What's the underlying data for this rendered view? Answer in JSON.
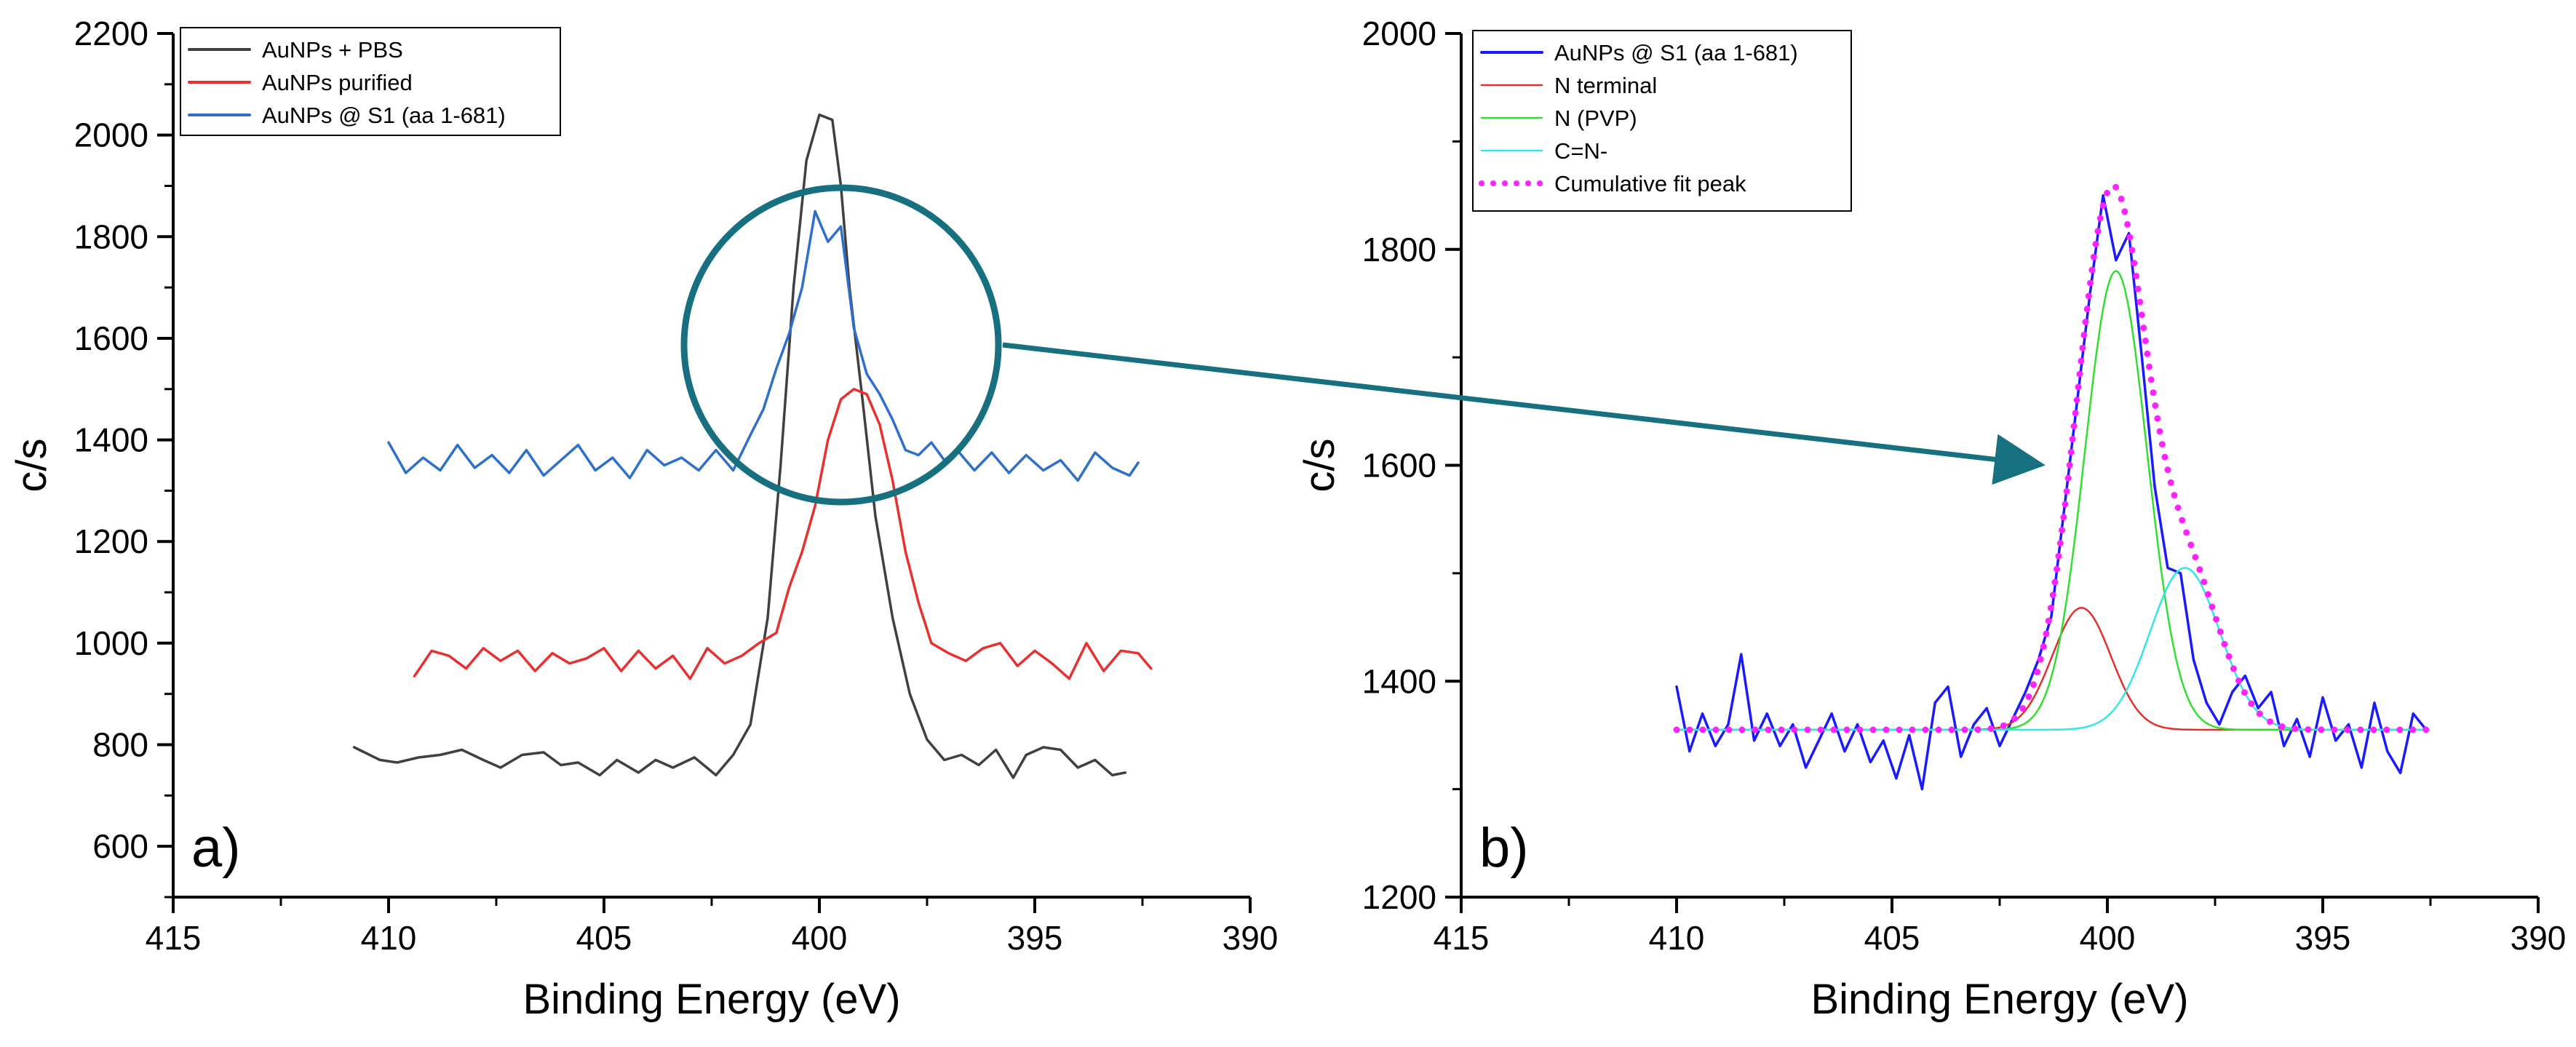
{
  "chart_data": [
    {
      "panel": "a)",
      "type": "line",
      "xlabel": "Binding Energy (eV)",
      "ylabel": "c/s",
      "xlim": [
        415,
        390
      ],
      "ylim": [
        500,
        2200
      ],
      "xticks": [
        "415",
        "410",
        "405",
        "400",
        "395",
        "390"
      ],
      "yticks": [
        "600",
        "800",
        "1000",
        "1200",
        "1400",
        "1600",
        "1800",
        "2000",
        "2200"
      ],
      "legend_position": "top-left",
      "series": [
        {
          "name": "AuNPs + PBS",
          "color": "#404040",
          "x": [
            410.8,
            410.2,
            409.8,
            409.3,
            408.8,
            408.3,
            407.8,
            407.4,
            406.9,
            406.4,
            406.0,
            405.6,
            405.1,
            404.7,
            404.2,
            403.8,
            403.4,
            402.9,
            402.4,
            402.0,
            401.6,
            401.2,
            400.9,
            400.6,
            400.3,
            400.0,
            399.7,
            399.5,
            399.3,
            399.0,
            398.7,
            398.3,
            397.9,
            397.5,
            397.1,
            396.7,
            396.3,
            395.9,
            395.5,
            395.2,
            394.8,
            394.4,
            394.0,
            393.6,
            393.2,
            392.9
          ],
          "values": [
            795,
            770,
            765,
            775,
            780,
            790,
            770,
            755,
            780,
            785,
            760,
            765,
            740,
            770,
            745,
            770,
            755,
            775,
            740,
            780,
            840,
            1050,
            1350,
            1700,
            1950,
            2040,
            2030,
            1900,
            1700,
            1480,
            1250,
            1050,
            900,
            810,
            770,
            780,
            760,
            790,
            735,
            780,
            795,
            790,
            755,
            770,
            740,
            745
          ]
        },
        {
          "name": "AuNPs purified",
          "color": "#e83030",
          "x": [
            409.4,
            409.0,
            408.6,
            408.2,
            407.8,
            407.4,
            407.0,
            406.6,
            406.2,
            405.8,
            405.4,
            405.0,
            404.6,
            404.2,
            403.8,
            403.4,
            403.0,
            402.6,
            402.2,
            401.8,
            401.4,
            401.0,
            400.7,
            400.4,
            400.1,
            399.8,
            399.5,
            399.2,
            398.9,
            398.6,
            398.3,
            398.0,
            397.7,
            397.4,
            397.0,
            396.6,
            396.2,
            395.8,
            395.4,
            395.0,
            394.6,
            394.2,
            393.8,
            393.4,
            393.0,
            392.6,
            392.3
          ],
          "values": [
            935,
            985,
            975,
            950,
            990,
            965,
            985,
            945,
            980,
            960,
            970,
            990,
            945,
            985,
            950,
            975,
            930,
            990,
            960,
            975,
            1000,
            1020,
            1110,
            1180,
            1270,
            1400,
            1480,
            1500,
            1490,
            1430,
            1320,
            1180,
            1080,
            1000,
            980,
            965,
            990,
            1000,
            955,
            985,
            960,
            930,
            1000,
            945,
            985,
            980,
            950
          ]
        },
        {
          "name": "AuNPs @ S1 (aa 1-681)",
          "color": "#2e6fcb",
          "x": [
            410.0,
            409.6,
            409.2,
            408.8,
            408.4,
            408.0,
            407.6,
            407.2,
            406.8,
            406.4,
            406.0,
            405.6,
            405.2,
            404.8,
            404.4,
            404.0,
            403.6,
            403.2,
            402.8,
            402.4,
            402.0,
            401.6,
            401.3,
            401.0,
            400.7,
            400.4,
            400.1,
            399.8,
            399.5,
            399.2,
            398.9,
            398.6,
            398.3,
            398.0,
            397.7,
            397.4,
            397.1,
            396.8,
            396.4,
            396.0,
            395.6,
            395.2,
            394.8,
            394.4,
            394.0,
            393.6,
            393.2,
            392.8,
            392.6
          ],
          "values": [
            1395,
            1335,
            1365,
            1340,
            1390,
            1345,
            1370,
            1335,
            1380,
            1330,
            1360,
            1390,
            1340,
            1365,
            1325,
            1380,
            1350,
            1365,
            1340,
            1380,
            1340,
            1410,
            1460,
            1540,
            1610,
            1700,
            1850,
            1790,
            1820,
            1620,
            1530,
            1490,
            1440,
            1380,
            1370,
            1395,
            1360,
            1380,
            1340,
            1375,
            1335,
            1370,
            1340,
            1360,
            1320,
            1375,
            1345,
            1330,
            1355
          ]
        }
      ]
    },
    {
      "panel": "b)",
      "type": "line",
      "xlabel": "Binding Energy (eV)",
      "ylabel": "c/s",
      "xlim": [
        415,
        390
      ],
      "ylim": [
        1200,
        2000
      ],
      "xticks": [
        "415",
        "410",
        "405",
        "400",
        "395",
        "390"
      ],
      "yticks": [
        "1200",
        "1400",
        "1600",
        "1800",
        "2000"
      ],
      "legend_position": "top-left",
      "series": [
        {
          "name": "AuNPs @ S1 (aa 1-681)",
          "color": "#1a1aff",
          "x": [
            410.0,
            409.7,
            409.4,
            409.1,
            408.8,
            408.5,
            408.2,
            407.9,
            407.6,
            407.3,
            407.0,
            406.7,
            406.4,
            406.1,
            405.8,
            405.5,
            405.2,
            404.9,
            404.6,
            404.3,
            404.0,
            403.7,
            403.4,
            403.1,
            402.8,
            402.5,
            402.2,
            401.9,
            401.6,
            401.3,
            401.0,
            400.7,
            400.4,
            400.1,
            399.8,
            399.5,
            399.2,
            398.9,
            398.6,
            398.3,
            398.0,
            397.7,
            397.4,
            397.1,
            396.8,
            396.5,
            396.2,
            395.9,
            395.6,
            395.3,
            395.0,
            394.7,
            394.4,
            394.1,
            393.8,
            393.5,
            393.2,
            392.9,
            392.6
          ],
          "values": [
            1395,
            1335,
            1370,
            1340,
            1360,
            1425,
            1345,
            1370,
            1340,
            1360,
            1320,
            1345,
            1370,
            1335,
            1360,
            1325,
            1345,
            1310,
            1350,
            1300,
            1380,
            1395,
            1330,
            1360,
            1375,
            1340,
            1365,
            1390,
            1420,
            1460,
            1560,
            1660,
            1760,
            1850,
            1790,
            1815,
            1700,
            1580,
            1505,
            1500,
            1420,
            1380,
            1360,
            1390,
            1405,
            1375,
            1390,
            1340,
            1365,
            1330,
            1385,
            1345,
            1360,
            1320,
            1380,
            1335,
            1315,
            1370,
            1355
          ]
        },
        {
          "name": "N terminal",
          "color": "#e03030",
          "peak_center": 400.6,
          "peak_height": 1468,
          "peak_fwhm": 1.6,
          "baseline": 1355
        },
        {
          "name": "N (PVP)",
          "color": "#33dd33",
          "peak_center": 399.8,
          "peak_height": 1780,
          "peak_fwhm": 1.7,
          "baseline": 1355
        },
        {
          "name": "C=N-",
          "color": "#33e6e6",
          "peak_center": 398.2,
          "peak_height": 1505,
          "peak_fwhm": 1.9,
          "baseline": 1355
        },
        {
          "name": "Cumulative fit peak",
          "color": "#ff22ff",
          "style": "dotted",
          "sum_of": [
            "N terminal",
            "N (PVP)",
            "C=N-"
          ]
        }
      ]
    }
  ]
}
